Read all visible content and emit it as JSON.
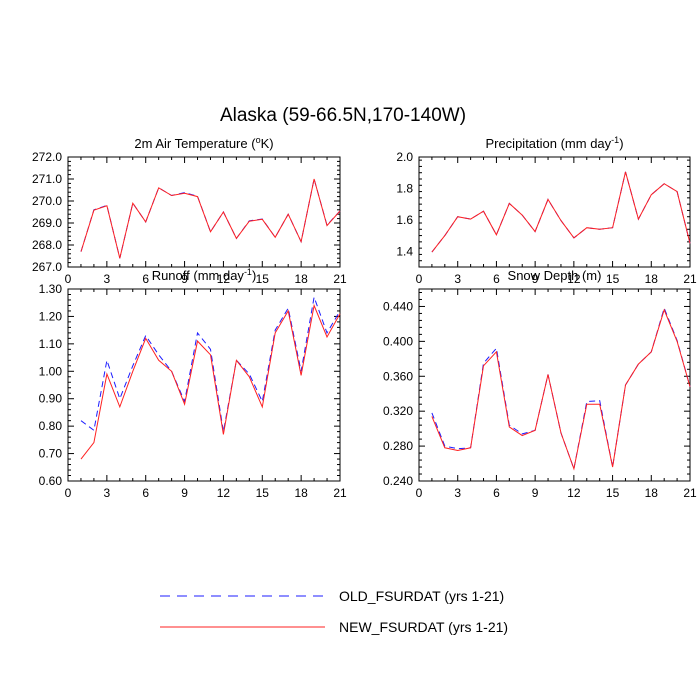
{
  "figure": {
    "title": "Alaska (59-66.5N,170-140W)"
  },
  "legend": {
    "position": "bottom-center",
    "items": [
      {
        "label": "OLD_FSURDAT (yrs 1-21)",
        "color": "#1c1cff",
        "dash": "dashed"
      },
      {
        "label": "NEW_FSURDAT (yrs 1-21)",
        "color": "#ff2020",
        "dash": "solid"
      }
    ]
  },
  "chart_data": [
    {
      "type": "line",
      "title_main": "2m Air Temperature (",
      "title_sup": "o",
      "title_tail": "K)",
      "x": [
        1,
        2,
        3,
        4,
        5,
        6,
        7,
        8,
        9,
        10,
        11,
        12,
        13,
        14,
        15,
        16,
        17,
        18,
        19,
        20,
        21
      ],
      "xlim": [
        0,
        21
      ],
      "xticks": [
        "0",
        "3",
        "6",
        "9",
        "12",
        "15",
        "18",
        "21"
      ],
      "ylim": [
        267.0,
        272.0
      ],
      "yticks": [
        "267.0",
        "268.0",
        "269.0",
        "270.0",
        "271.0",
        "272.0"
      ],
      "series": [
        {
          "name": "OLD_FSURDAT (yrs 1-21)",
          "color": "#1c1cff",
          "dash": "dashed",
          "values": [
            267.7,
            269.6,
            269.8,
            267.4,
            269.9,
            269.05,
            270.6,
            270.25,
            270.38,
            270.22,
            268.6,
            269.5,
            268.3,
            269.1,
            269.18,
            268.35,
            269.4,
            268.15,
            271.0,
            268.9,
            269.55
          ]
        },
        {
          "name": "NEW_FSURDAT (yrs 1-21)",
          "color": "#ff2020",
          "dash": "solid",
          "values": [
            267.7,
            269.58,
            269.78,
            267.4,
            269.9,
            269.05,
            270.6,
            270.25,
            270.35,
            270.2,
            268.6,
            269.5,
            268.3,
            269.08,
            269.17,
            268.35,
            269.4,
            268.15,
            271.0,
            268.88,
            269.55
          ]
        }
      ]
    },
    {
      "type": "line",
      "title_main": "Precipitation (mm day",
      "title_sup": "-1",
      "title_tail": ")",
      "x": [
        1,
        2,
        3,
        4,
        5,
        6,
        7,
        8,
        9,
        10,
        11,
        12,
        13,
        14,
        15,
        16,
        17,
        18,
        19,
        20,
        21
      ],
      "xlim": [
        0,
        21
      ],
      "xticks": [
        "0",
        "3",
        "6",
        "9",
        "12",
        "15",
        "18",
        "21"
      ],
      "ylim": [
        1.3,
        2.0
      ],
      "yticks": [
        "1.4",
        "1.6",
        "1.8",
        "2.0"
      ],
      "series": [
        {
          "name": "OLD_FSURDAT (yrs 1-21)",
          "color": "#1c1cff",
          "dash": "dashed",
          "values": [
            1.395,
            1.5,
            1.62,
            1.605,
            1.655,
            1.505,
            1.705,
            1.63,
            1.525,
            1.73,
            1.595,
            1.485,
            1.55,
            1.54,
            1.55,
            1.905,
            1.605,
            1.76,
            1.83,
            1.78,
            1.45
          ]
        },
        {
          "name": "NEW_FSURDAT (yrs 1-21)",
          "color": "#ff2020",
          "dash": "solid",
          "values": [
            1.395,
            1.5,
            1.62,
            1.605,
            1.655,
            1.505,
            1.705,
            1.63,
            1.525,
            1.73,
            1.595,
            1.485,
            1.55,
            1.54,
            1.55,
            1.905,
            1.605,
            1.76,
            1.83,
            1.78,
            1.45
          ]
        }
      ]
    },
    {
      "type": "line",
      "title_main": "Runoff (mm day",
      "title_sup": "-1",
      "title_tail": ")",
      "x": [
        1,
        2,
        3,
        4,
        5,
        6,
        7,
        8,
        9,
        10,
        11,
        12,
        13,
        14,
        15,
        16,
        17,
        18,
        19,
        20,
        21
      ],
      "xlim": [
        0,
        21
      ],
      "xticks": [
        "0",
        "3",
        "6",
        "9",
        "12",
        "15",
        "18",
        "21"
      ],
      "ylim": [
        0.6,
        1.3
      ],
      "yticks": [
        "0.60",
        "0.70",
        "0.80",
        "0.90",
        "1.00",
        "1.10",
        "1.20",
        "1.30"
      ],
      "series": [
        {
          "name": "OLD_FSURDAT (yrs 1-21)",
          "color": "#1c1cff",
          "dash": "dashed",
          "values": [
            0.82,
            0.785,
            1.04,
            0.9,
            1.02,
            1.13,
            1.06,
            1.0,
            0.89,
            1.14,
            1.08,
            0.78,
            1.04,
            0.99,
            0.89,
            1.15,
            1.23,
            1.0,
            1.27,
            1.14,
            1.22
          ]
        },
        {
          "name": "NEW_FSURDAT (yrs 1-21)",
          "color": "#ff2020",
          "dash": "solid",
          "values": [
            0.68,
            0.74,
            0.99,
            0.87,
            1.0,
            1.12,
            1.04,
            1.0,
            0.88,
            1.11,
            1.06,
            0.77,
            1.04,
            0.98,
            0.87,
            1.14,
            1.22,
            0.985,
            1.24,
            1.125,
            1.21
          ]
        }
      ]
    },
    {
      "type": "line",
      "title_main": "Snow Depth (m)",
      "title_sup": "",
      "title_tail": "",
      "x": [
        1,
        2,
        3,
        4,
        5,
        6,
        7,
        8,
        9,
        10,
        11,
        12,
        13,
        14,
        15,
        16,
        17,
        18,
        19,
        20,
        21
      ],
      "xlim": [
        0,
        21
      ],
      "xticks": [
        "0",
        "3",
        "6",
        "9",
        "12",
        "15",
        "18",
        "21"
      ],
      "ylim": [
        0.24,
        0.46
      ],
      "yticks": [
        "0.240",
        "0.280",
        "0.320",
        "0.360",
        "0.400",
        "0.440"
      ],
      "series": [
        {
          "name": "OLD_FSURDAT (yrs 1-21)",
          "color": "#1c1cff",
          "dash": "dashed",
          "values": [
            0.318,
            0.28,
            0.277,
            0.278,
            0.375,
            0.392,
            0.304,
            0.294,
            0.298,
            0.362,
            0.295,
            0.254,
            0.331,
            0.332,
            0.256,
            0.35,
            0.374,
            0.388,
            0.438,
            0.401,
            0.348
          ]
        },
        {
          "name": "NEW_FSURDAT (yrs 1-21)",
          "color": "#ff2020",
          "dash": "solid",
          "values": [
            0.314,
            0.278,
            0.275,
            0.278,
            0.372,
            0.388,
            0.302,
            0.292,
            0.298,
            0.362,
            0.295,
            0.254,
            0.328,
            0.328,
            0.256,
            0.35,
            0.374,
            0.388,
            0.436,
            0.4,
            0.348
          ]
        }
      ]
    }
  ]
}
